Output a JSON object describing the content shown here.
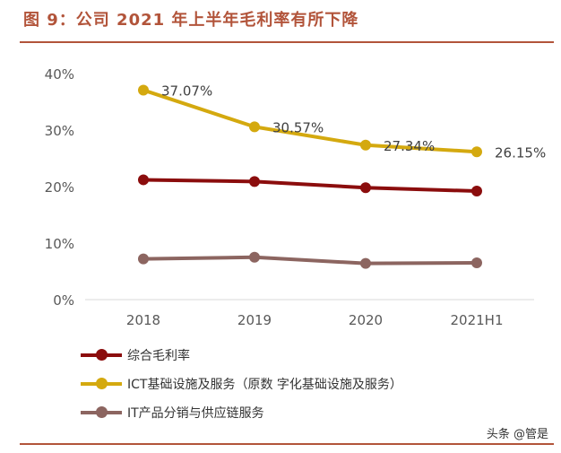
{
  "figure": {
    "title": "图 9：公司 2021 年上半年毛利率有所下降",
    "watermark": "头条 @管是"
  },
  "chart_data": {
    "type": "line",
    "categories": [
      "2018",
      "2019",
      "2020",
      "2021H1"
    ],
    "ylim": [
      0,
      40
    ],
    "yticks": [
      "0%",
      "10%",
      "20%",
      "30%",
      "40%"
    ],
    "grid": false,
    "legend_position": "bottom",
    "series": [
      {
        "name": "综合毛利率",
        "color": "#8b0d0d",
        "values": [
          21.2,
          20.9,
          19.8,
          19.2
        ],
        "labels": null
      },
      {
        "name": "ICT基础设施及服务（原数 字化基础设施及服务）",
        "color": "#d4a90f",
        "values": [
          37.07,
          30.57,
          27.34,
          26.15
        ],
        "labels": [
          "37.07%",
          "30.57%",
          "27.34%",
          "26.15%"
        ]
      },
      {
        "name": "IT产品分销与供应链服务",
        "color": "#8c6560",
        "values": [
          7.2,
          7.5,
          6.4,
          6.5
        ],
        "labels": null
      }
    ]
  }
}
